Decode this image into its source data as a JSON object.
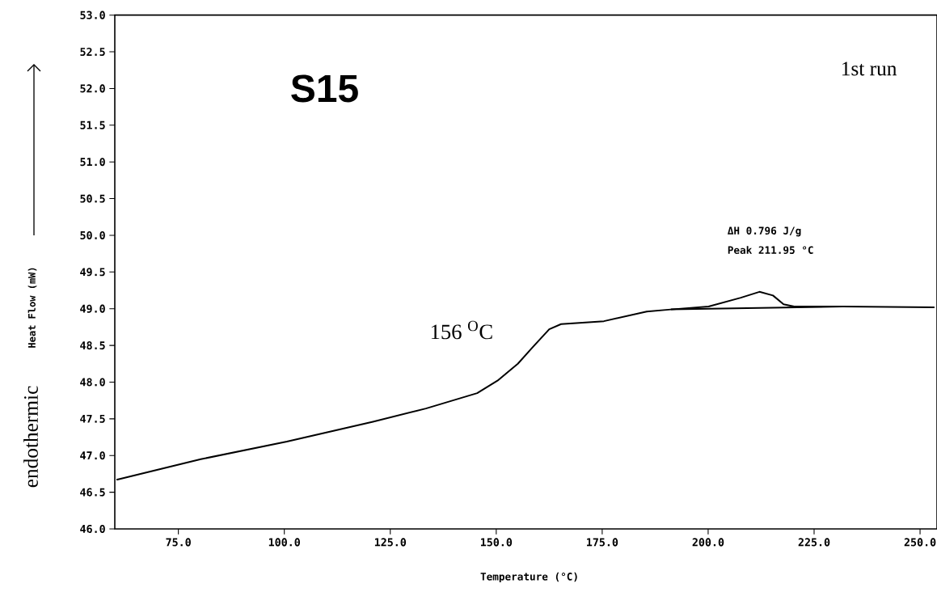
{
  "chart_data": {
    "type": "line",
    "xlabel": "Temperature (°C)",
    "ylabel": "Heat Flow (mW)",
    "xlim": [
      60,
      254
    ],
    "xticks": [
      {
        "value": 75,
        "label": "75.0"
      },
      {
        "value": 100,
        "label": "100.0"
      },
      {
        "value": 125,
        "label": "125.0"
      },
      {
        "value": 150,
        "label": "150.0"
      },
      {
        "value": 175,
        "label": "175.0"
      },
      {
        "value": 200,
        "label": "200.0"
      },
      {
        "value": 225,
        "label": "225.0"
      },
      {
        "value": 250,
        "label": "250.0"
      }
    ],
    "ylim": [
      46,
      53
    ],
    "yticks": [
      {
        "value": 46,
        "label": "46.0"
      },
      {
        "value": 46.5,
        "label": "46.5"
      },
      {
        "value": 47,
        "label": "47.0"
      },
      {
        "value": 47.5,
        "label": "47.5"
      },
      {
        "value": 48,
        "label": "48.0"
      },
      {
        "value": 48.5,
        "label": "48.5"
      },
      {
        "value": 49,
        "label": "49.0"
      },
      {
        "value": 49.5,
        "label": "49.5"
      },
      {
        "value": 50,
        "label": "50.0"
      },
      {
        "value": 50.5,
        "label": "50.5"
      },
      {
        "value": 51,
        "label": "51.0"
      },
      {
        "value": 51.5,
        "label": "51.5"
      },
      {
        "value": 52,
        "label": "52.0"
      },
      {
        "value": 52.5,
        "label": "52.5"
      },
      {
        "value": 53,
        "label": "53.0"
      }
    ],
    "grid": false,
    "marker": "none",
    "line_style": "solid",
    "series": [
      {
        "color": "#000000",
        "x": [
          60.4,
          80.3,
          100.6,
          120.9,
          133.4,
          145.5,
          150.3,
          155.1,
          158.5,
          162.5,
          165.3,
          175.4,
          185.5,
          191.2,
          200.1,
          207.7,
          212.1,
          215.3,
          217.8,
          220.3,
          231.7,
          253.4
        ],
        "values": [
          46.67,
          46.95,
          47.19,
          47.46,
          47.64,
          47.85,
          48.02,
          48.25,
          48.47,
          48.72,
          48.79,
          48.83,
          48.96,
          48.99,
          49.03,
          49.15,
          49.23,
          49.18,
          49.06,
          49.03,
          49.03,
          49.02
        ]
      },
      {
        "color": "#000000",
        "x": [
          191.2,
          231.7
        ],
        "values": [
          48.99,
          49.03
        ]
      }
    ],
    "annotations": [
      "S15",
      "1st run",
      "156 $^{O}$C",
      "endothermic",
      "ΔH 0.796 J/g",
      "Peak 211.95 °C"
    ]
  }
}
